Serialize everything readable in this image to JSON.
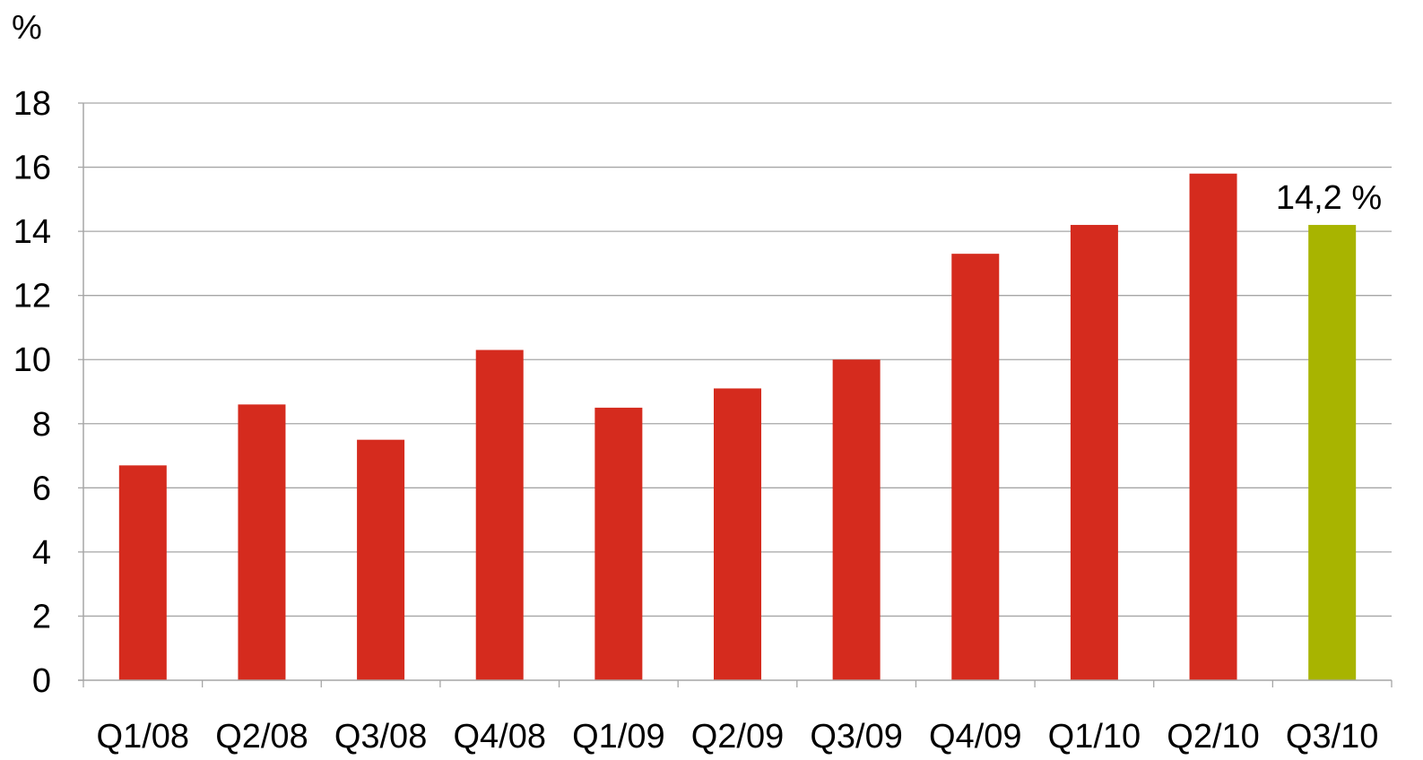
{
  "chart_data": {
    "type": "bar",
    "categories": [
      "Q1/08",
      "Q2/08",
      "Q3/08",
      "Q4/08",
      "Q1/09",
      "Q2/09",
      "Q3/09",
      "Q4/09",
      "Q1/10",
      "Q2/10",
      "Q3/10"
    ],
    "series": [
      {
        "values": [
          6.7,
          8.6,
          7.5,
          10.3,
          8.5,
          9.1,
          10.0,
          13.3,
          14.2,
          15.8,
          14.2
        ]
      }
    ],
    "ylabel": "%",
    "ylim": [
      0,
      18
    ],
    "yticks": [
      0,
      2,
      4,
      6,
      8,
      10,
      12,
      14,
      16,
      18
    ],
    "grid": true,
    "legend": "none",
    "annotations": [
      {
        "category": "Q3/10",
        "text": "14,2 %"
      }
    ],
    "colors": {
      "bar": "#D52B1E",
      "highlight": "#A8B400",
      "highlight_category": "Q3/10",
      "gridline": "#A6A6A6",
      "axis": "#A6A6A6"
    }
  }
}
